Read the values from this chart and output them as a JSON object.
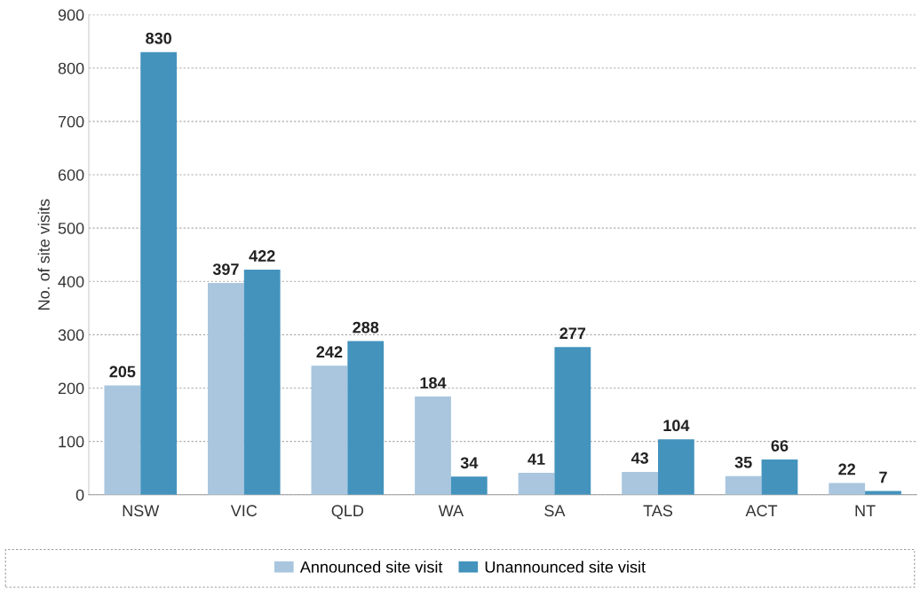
{
  "chart_data": {
    "type": "bar",
    "ylabel": "No. of site visits",
    "categories": [
      "NSW",
      "VIC",
      "QLD",
      "WA",
      "SA",
      "TAS",
      "ACT",
      "NT"
    ],
    "series": [
      {
        "name": "Announced site visit",
        "color": "#a9c6de",
        "values": [
          205,
          397,
          242,
          184,
          41,
          43,
          35,
          22
        ]
      },
      {
        "name": "Unannounced site visit",
        "color": "#4393bd",
        "values": [
          830,
          422,
          288,
          34,
          277,
          104,
          66,
          7
        ]
      }
    ],
    "ylim": [
      0,
      900
    ],
    "yticks": [
      0,
      100,
      200,
      300,
      400,
      500,
      600,
      700,
      800,
      900
    ],
    "grid": "y",
    "legend": "bottom",
    "data_labels": true
  }
}
